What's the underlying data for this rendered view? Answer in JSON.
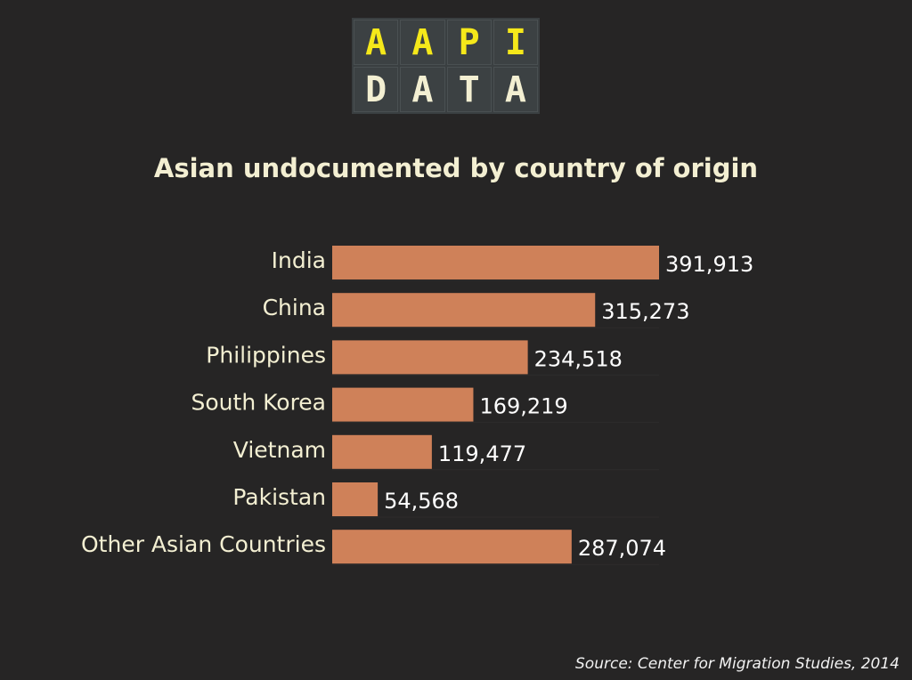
{
  "logo": {
    "top_letters": [
      "A",
      "A",
      "P",
      "I"
    ],
    "bottom_letters": [
      "D",
      "A",
      "T",
      "A"
    ],
    "top_color": "#f5e81a",
    "bottom_color": "#f3efd2"
  },
  "source": "Source: Center for Migration Studies, 2014",
  "chart_data": {
    "type": "bar",
    "orientation": "horizontal",
    "title": "Asian undocumented by country of origin",
    "categories": [
      "India",
      "China",
      "Philippines",
      "South Korea",
      "Vietnam",
      "Pakistan",
      "Other Asian Countries"
    ],
    "values": [
      391913,
      315273,
      234518,
      169219,
      119477,
      54568,
      287074
    ],
    "value_labels": [
      "391,913",
      "315,273",
      "234,518",
      "169,219",
      "119,477",
      "54,568",
      "287,074"
    ],
    "xlabel": "",
    "ylabel": "",
    "xlim": [
      0,
      391913
    ],
    "bar_color": "#cf8159",
    "label_color": "#f3efd2",
    "value_label_color": "#ffffff",
    "grid": false
  }
}
